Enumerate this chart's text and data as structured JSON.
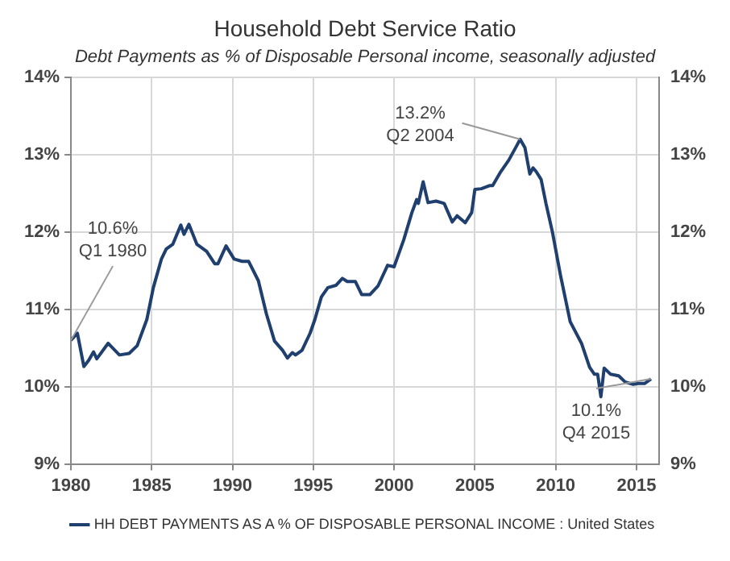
{
  "chart_data": {
    "type": "line",
    "title": "Household Debt Service Ratio",
    "subtitle": "Debt Payments as % of Disposable Personal income, seasonally adjusted",
    "x": [
      1980.0,
      1980.4,
      1980.8,
      1981.1,
      1981.4,
      1981.6,
      1982.3,
      1983.0,
      1983.6,
      1984.1,
      1984.7,
      1985.1,
      1985.6,
      1985.9,
      1986.3,
      1986.8,
      1987.0,
      1987.3,
      1987.8,
      1988.4,
      1988.9,
      1989.1,
      1989.6,
      1990.1,
      1990.6,
      1991.0,
      1991.6,
      1992.1,
      1992.6,
      1993.1,
      1993.4,
      1993.7,
      1993.9,
      1994.3,
      1994.8,
      1995.1,
      1995.5,
      1995.9,
      1996.4,
      1996.8,
      1997.1,
      1997.6,
      1998.0,
      1998.5,
      1999.0,
      1999.6,
      2000.0,
      2000.6,
      2001.1,
      2001.4,
      2001.5,
      2001.8,
      2002.1,
      2002.6,
      2003.1,
      2003.6,
      2003.9,
      2004.4,
      2004.8,
      2005.0,
      2005.4,
      2005.9,
      2006.1,
      2006.6,
      2007.1,
      2007.6,
      2007.8,
      2008.1,
      2008.4,
      2008.6,
      2008.8,
      2009.1,
      2009.4,
      2009.8,
      2010.3,
      2010.9,
      2011.6,
      2012.1,
      2012.4,
      2012.6,
      2012.8,
      2013.0,
      2013.4,
      2013.9,
      2014.3,
      2014.8,
      2015.1,
      2015.5,
      2015.9
    ],
    "series": [
      {
        "name": "HH DEBT PAYMENTS AS A % OF DISPOSABLE PERSONAL INCOME : United States",
        "color": "#1f3f6e",
        "values": [
          10.6,
          10.69,
          10.26,
          10.34,
          10.45,
          10.36,
          10.56,
          10.41,
          10.43,
          10.53,
          10.87,
          11.28,
          11.65,
          11.78,
          11.84,
          12.09,
          11.97,
          12.1,
          11.84,
          11.75,
          11.59,
          11.59,
          11.82,
          11.65,
          11.62,
          11.62,
          11.37,
          10.94,
          10.59,
          10.47,
          10.37,
          10.44,
          10.41,
          10.47,
          10.69,
          10.87,
          11.16,
          11.28,
          11.31,
          11.4,
          11.36,
          11.36,
          11.19,
          11.19,
          11.3,
          11.57,
          11.55,
          11.9,
          12.25,
          12.42,
          12.37,
          12.65,
          12.38,
          12.4,
          12.37,
          12.13,
          12.21,
          12.12,
          12.25,
          12.55,
          12.56,
          12.6,
          12.6,
          12.78,
          12.93,
          13.12,
          13.2,
          13.09,
          12.75,
          12.83,
          12.78,
          12.68,
          12.37,
          12.0,
          11.44,
          10.84,
          10.56,
          10.25,
          10.16,
          10.16,
          9.87,
          10.24,
          10.16,
          10.14,
          10.06,
          10.03,
          10.04,
          10.04,
          10.1
        ]
      }
    ],
    "xlim": [
      1980,
      2016.4
    ],
    "xticks": [
      1980,
      1985,
      1990,
      1995,
      2000,
      2005,
      2010,
      2015
    ],
    "ylim": [
      9,
      14
    ],
    "yticks": [
      {
        "value": 9,
        "label": "9%"
      },
      {
        "value": 10,
        "label": "10%"
      },
      {
        "value": 11,
        "label": "11%"
      },
      {
        "value": 12,
        "label": "12%"
      },
      {
        "value": 13,
        "label": "13%"
      },
      {
        "value": 14,
        "label": "14%"
      }
    ],
    "y2lim": [
      9,
      14
    ],
    "y2ticks": [
      {
        "value": 9,
        "label": "9%"
      },
      {
        "value": 10,
        "label": "10%"
      },
      {
        "value": 11,
        "label": "11%"
      },
      {
        "value": 12,
        "label": "12%"
      },
      {
        "value": 13,
        "label": "13%"
      },
      {
        "value": 14,
        "label": "14%"
      }
    ],
    "grid": true,
    "legend": "bottom",
    "marker": "none",
    "line_style": "solid",
    "annotations": [
      {
        "text": "10.6%\nQ1 1980",
        "x": 1980.0,
        "y": 10.6
      },
      {
        "text": "13.2%\nQ2 2004",
        "x": 2007.8,
        "y": 13.2
      },
      {
        "text": "10.1%\nQ4 2015",
        "x": 2015.9,
        "y": 10.1
      }
    ]
  }
}
